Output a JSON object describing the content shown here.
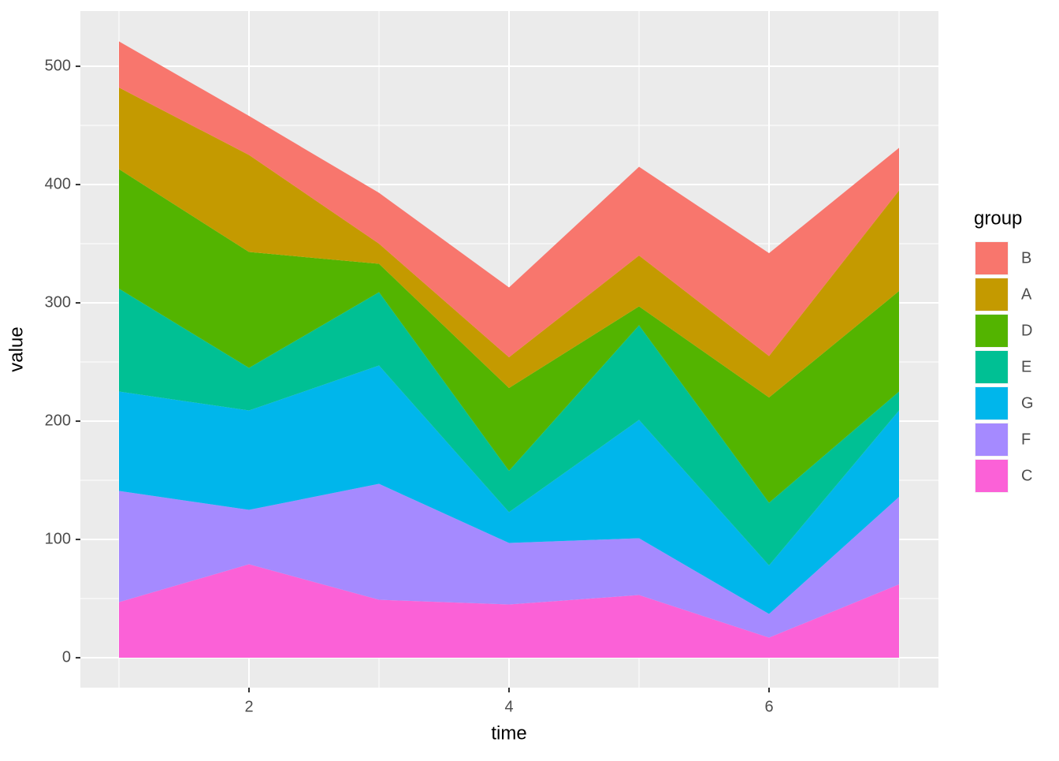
{
  "chart_data": {
    "type": "stacked_area",
    "x_label": "time",
    "y_label": "value",
    "legend_title": "group",
    "x": [
      1,
      2,
      3,
      4,
      5,
      6,
      7
    ],
    "series": [
      {
        "name": "B",
        "color": "#F8766D",
        "values": [
          39,
          33,
          43,
          59,
          75,
          87,
          36
        ]
      },
      {
        "name": "A",
        "color": "#C49A00",
        "values": [
          69,
          82,
          17,
          26,
          43,
          35,
          85
        ]
      },
      {
        "name": "D",
        "color": "#53B400",
        "values": [
          101,
          98,
          24,
          70,
          16,
          89,
          85
        ]
      },
      {
        "name": "E",
        "color": "#00C094",
        "values": [
          87,
          36,
          62,
          35,
          80,
          53,
          16
        ]
      },
      {
        "name": "G",
        "color": "#00B6EB",
        "values": [
          84,
          84,
          100,
          26,
          100,
          41,
          73
        ]
      },
      {
        "name": "F",
        "color": "#A58AFF",
        "values": [
          94,
          46,
          98,
          52,
          48,
          20,
          74
        ]
      },
      {
        "name": "C",
        "color": "#FB61D7",
        "values": [
          47,
          79,
          49,
          45,
          53,
          17,
          62
        ]
      }
    ],
    "xlim": [
      0.703,
      7.303
    ],
    "ylim": [
      -25.3,
      546.7
    ],
    "xticks": [
      2,
      4,
      6
    ],
    "yticks": [
      0,
      100,
      200,
      300,
      400,
      500
    ],
    "x_minor_breaks": [
      1,
      3,
      5,
      7
    ],
    "y_minor_breaks": [
      50,
      150,
      250,
      350,
      450
    ],
    "grid": true,
    "legend_position": "right"
  }
}
